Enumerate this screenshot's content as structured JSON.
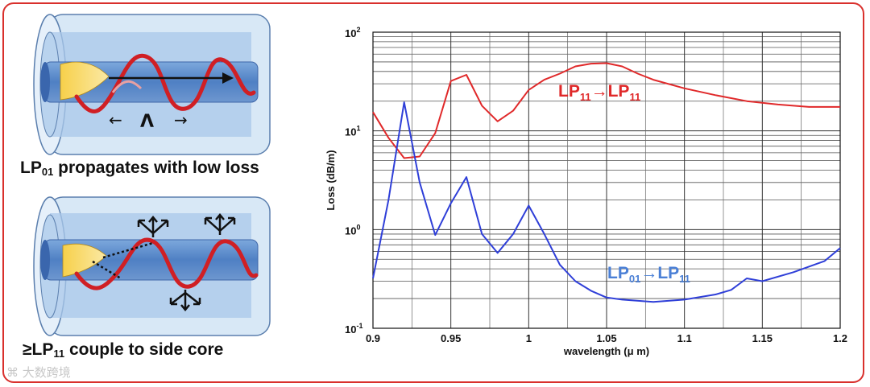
{
  "left_panel": {
    "caption1_main": "LP",
    "caption1_sub": "01",
    "caption1_rest": " propagates with low loss",
    "caption2_main": "≥LP",
    "caption2_sub": "11",
    "caption2_rest": " couple to side core",
    "period_symbol": "Λ",
    "arrow_left": "←",
    "arrow_right": "→"
  },
  "watermark": "大数跨境",
  "colors": {
    "red": "#e0292a",
    "blue": "#2f3fd8",
    "label_blue": "#4a7fd6",
    "frame": "#d9302c"
  },
  "chart_data": {
    "type": "line",
    "xlabel": "wavelength (μ m)",
    "ylabel": "Loss (dB/m)",
    "xlim": [
      0.9,
      1.2
    ],
    "ylim": [
      0.1,
      100
    ],
    "yscale": "log",
    "grid": true,
    "x_ticks": [
      "0.9",
      "0.95",
      "1",
      "1.05",
      "1.1",
      "1.15",
      "1.2"
    ],
    "y_ticks": [
      {
        "base": "10",
        "exp": "-1"
      },
      {
        "base": "10",
        "exp": "0"
      },
      {
        "base": "10",
        "exp": "1"
      },
      {
        "base": "10",
        "exp": "2"
      }
    ],
    "series": [
      {
        "name_main1": "LP",
        "name_sub1": "11",
        "name_main2": "LP",
        "name_sub2": "11",
        "color": "#e0292a",
        "x": [
          0.9,
          0.91,
          0.92,
          0.93,
          0.94,
          0.95,
          0.96,
          0.97,
          0.98,
          0.99,
          1.0,
          1.01,
          1.02,
          1.03,
          1.04,
          1.05,
          1.06,
          1.07,
          1.08,
          1.1,
          1.12,
          1.14,
          1.16,
          1.18,
          1.2
        ],
        "y": [
          15.5,
          8.5,
          5.3,
          5.5,
          9.5,
          32,
          37,
          18,
          12.5,
          16,
          26,
          33,
          38,
          45,
          48,
          48.5,
          45,
          38,
          33,
          27,
          23,
          20,
          18.5,
          17.5,
          17.5
        ]
      },
      {
        "name_main1": "LP",
        "name_sub1": "01",
        "name_main2": "LP",
        "name_sub2": "11",
        "color": "#2f3fd8",
        "x": [
          0.9,
          0.91,
          0.92,
          0.93,
          0.94,
          0.95,
          0.96,
          0.97,
          0.98,
          0.99,
          1.0,
          1.01,
          1.02,
          1.03,
          1.04,
          1.05,
          1.06,
          1.08,
          1.1,
          1.12,
          1.13,
          1.14,
          1.15,
          1.17,
          1.19,
          1.2
        ],
        "y": [
          0.32,
          2.0,
          19.5,
          3.0,
          0.88,
          1.85,
          3.4,
          0.9,
          0.58,
          0.9,
          1.75,
          0.9,
          0.44,
          0.3,
          0.24,
          0.205,
          0.195,
          0.185,
          0.195,
          0.22,
          0.245,
          0.32,
          0.3,
          0.37,
          0.48,
          0.65
        ]
      }
    ]
  }
}
